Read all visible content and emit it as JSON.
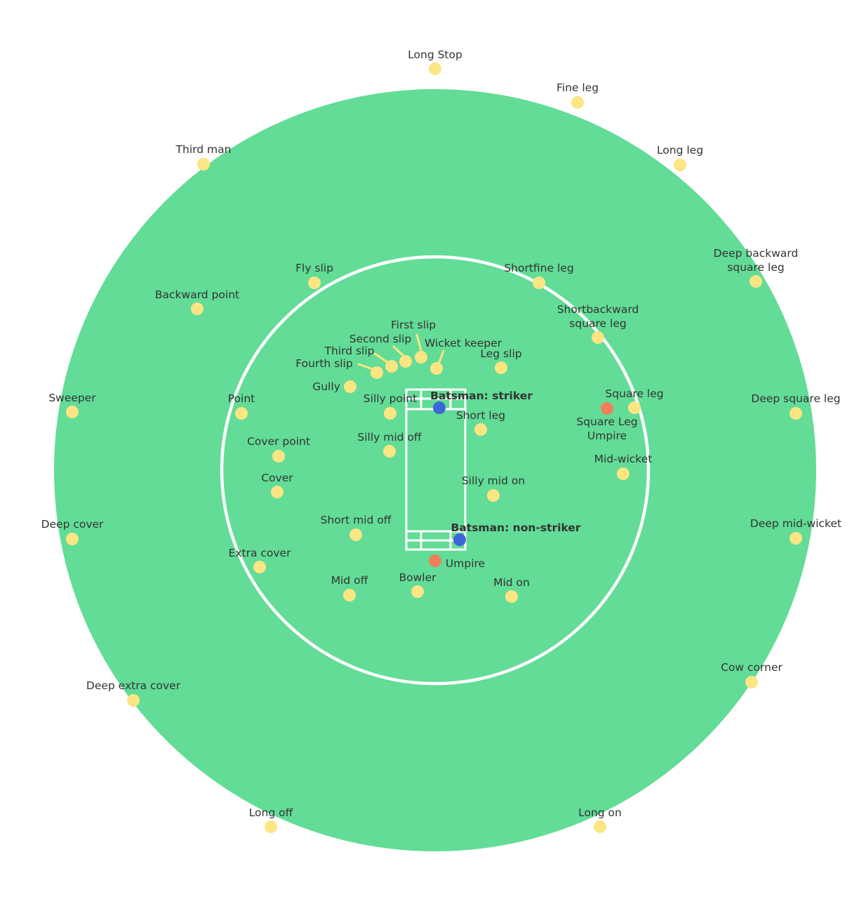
{
  "colors": {
    "outfield": "#62DC96",
    "boundary_line": "#ffffff",
    "fielder": "#FCE583",
    "batsman": "#3F65DB",
    "umpire": "#F27E5A",
    "label": "#333333"
  },
  "fielders": [
    {
      "id": "long-stop",
      "label": "Long Stop"
    },
    {
      "id": "fine-leg",
      "label": "Fine leg"
    },
    {
      "id": "third-man",
      "label": "Third man"
    },
    {
      "id": "long-leg",
      "label": "Long leg"
    },
    {
      "id": "deep-backward-square-leg",
      "label": [
        "Deep backward",
        "square leg"
      ]
    },
    {
      "id": "fly-slip",
      "label": "Fly slip"
    },
    {
      "id": "shortfine-leg",
      "label": "Shortfine leg"
    },
    {
      "id": "backward-point",
      "label": "Backward point"
    },
    {
      "id": "shortbackward-square-leg",
      "label": [
        "Shortbackward",
        "square leg"
      ]
    },
    {
      "id": "first-slip",
      "label": "First slip"
    },
    {
      "id": "second-slip",
      "label": "Second slip"
    },
    {
      "id": "third-slip",
      "label": "Third slip"
    },
    {
      "id": "fourth-slip",
      "label": "Fourth slip"
    },
    {
      "id": "wicket-keeper",
      "label": "Wicket keeper"
    },
    {
      "id": "leg-slip",
      "label": "Leg slip"
    },
    {
      "id": "gully",
      "label": "Gully"
    },
    {
      "id": "sweeper",
      "label": "Sweeper"
    },
    {
      "id": "point",
      "label": "Point"
    },
    {
      "id": "silly-point",
      "label": "Silly point"
    },
    {
      "id": "square-leg",
      "label": "Square leg"
    },
    {
      "id": "deep-square-leg",
      "label": "Deep square leg"
    },
    {
      "id": "short-leg",
      "label": "Short leg"
    },
    {
      "id": "cover-point",
      "label": "Cover point"
    },
    {
      "id": "silly-mid-off",
      "label": "Silly mid off"
    },
    {
      "id": "mid-wicket",
      "label": "Mid-wicket"
    },
    {
      "id": "cover",
      "label": "Cover"
    },
    {
      "id": "silly-mid-on",
      "label": "Silly mid on"
    },
    {
      "id": "short-mid-off",
      "label": "Short mid off"
    },
    {
      "id": "deep-cover",
      "label": "Deep cover"
    },
    {
      "id": "deep-mid-wicket",
      "label": "Deep mid-wicket"
    },
    {
      "id": "extra-cover",
      "label": "Extra cover"
    },
    {
      "id": "mid-off",
      "label": "Mid off"
    },
    {
      "id": "bowler",
      "label": "Bowler"
    },
    {
      "id": "mid-on",
      "label": "Mid on"
    },
    {
      "id": "cow-corner",
      "label": "Cow corner"
    },
    {
      "id": "deep-extra-cover",
      "label": "Deep extra cover"
    },
    {
      "id": "long-off",
      "label": "Long off"
    },
    {
      "id": "long-on",
      "label": "Long on"
    }
  ],
  "batsmen": [
    {
      "id": "striker",
      "label": "Batsman: striker"
    },
    {
      "id": "non-striker",
      "label": "Batsman: non-striker"
    }
  ],
  "umpires": [
    {
      "id": "square-leg-umpire",
      "label": [
        "Square Leg",
        "Umpire"
      ]
    },
    {
      "id": "umpire",
      "label": "Umpire"
    }
  ]
}
